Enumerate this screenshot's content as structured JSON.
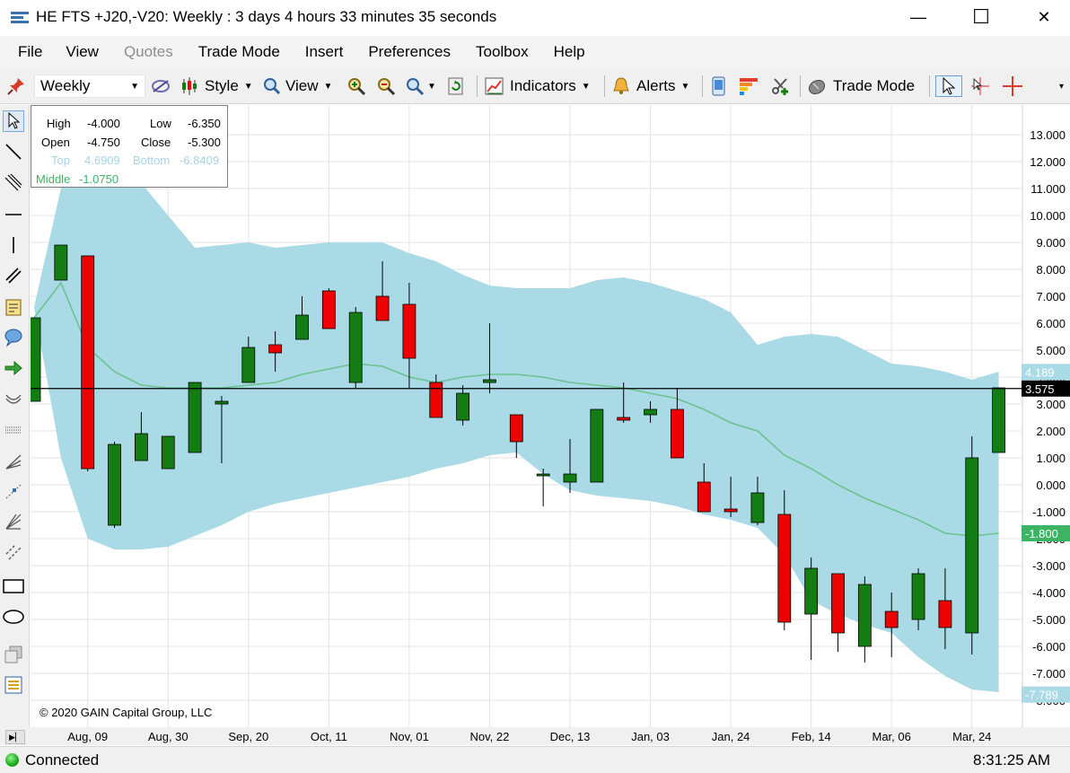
{
  "window": {
    "title": "HE FTS +J20,-V20: Weekly : 3 days 4 hours 33 minutes 35 seconds",
    "minimize_glyph": "—",
    "maximize_glyph": "☐",
    "close_glyph": "✕"
  },
  "menu": {
    "file": "File",
    "view": "View",
    "quotes": "Quotes",
    "trade_mode": "Trade Mode",
    "insert": "Insert",
    "preferences": "Preferences",
    "toolbox": "Toolbox",
    "help": "Help"
  },
  "toolbar": {
    "period": "Weekly",
    "style_label": "Style",
    "view_label": "View",
    "indicators_label": "Indicators",
    "alerts_label": "Alerts",
    "trade_mode_label": "Trade Mode"
  },
  "left_tools": [
    "pointer-tool-icon",
    "trend-line-icon",
    "parallel-channel-icon",
    "horizontal-line-icon",
    "vertical-line-icon",
    "parallel-lines-icon",
    "note-icon",
    "callout-icon",
    "arrow-icon",
    "arc-icon",
    "ruler-icon",
    "fibonacci-fan-icon",
    "gann-tool-icon",
    "speed-lines-icon",
    "regression-channel-icon",
    "rectangle-icon",
    "ellipse-icon",
    "copy-tool-icon",
    "object-list-icon"
  ],
  "info_box": {
    "high_label": "High",
    "high": "-4.000",
    "low_label": "Low",
    "low": "-6.350",
    "open_label": "Open",
    "open": "-4.750",
    "close_label": "Close",
    "close": "-5.300",
    "top_label": "Top",
    "top": "4.6909",
    "bottom_label": "Bottom",
    "bottom": "-6.8409",
    "middle_label": "Middle",
    "middle": "-1.0750"
  },
  "colors": {
    "up_candle": "#137d13",
    "down_candle": "#ec0000",
    "band_fill": "#a9dae5",
    "middle_line": "#6cc28e",
    "price_line": "#000000",
    "band_tag_bg": "#a9dae5",
    "middle_tag_bg": "#3cb464",
    "price_tag_bg": "#000000"
  },
  "chart_data": {
    "type": "candlestick",
    "y_ticks": [
      "13.000",
      "12.000",
      "11.000",
      "10.000",
      "9.000",
      "8.000",
      "7.000",
      "6.000",
      "5.000",
      "4.000",
      "3.000",
      "2.000",
      "1.000",
      "0.000",
      "-1.000",
      "-2.000",
      "-3.000",
      "-4.000",
      "-5.000",
      "-6.000",
      "-7.000",
      "-8.000"
    ],
    "y_tick_values": [
      13,
      12,
      11,
      10,
      9,
      8,
      7,
      6,
      5,
      4,
      3,
      2,
      1,
      0,
      -1,
      -2,
      -3,
      -4,
      -5,
      -6,
      -7,
      -8
    ],
    "ylim": [
      -8.6,
      13.7
    ],
    "x_labels": [
      "Aug, 09",
      "Aug, 30",
      "Sep, 20",
      "Oct, 11",
      "Nov, 01",
      "Nov, 22",
      "Dec, 13",
      "Jan, 03",
      "Jan, 24",
      "Feb, 14",
      "Mar, 06",
      "Mar, 24"
    ],
    "x_label_slots": [
      2,
      5,
      8,
      11,
      14,
      17,
      20,
      23,
      26,
      29,
      32,
      35
    ],
    "grid": "on",
    "candles": [
      {
        "open": 3.1,
        "high": 6.2,
        "low": 3.1,
        "close": 6.2
      },
      {
        "open": 7.6,
        "high": 8.9,
        "low": 7.6,
        "close": 8.9
      },
      {
        "open": 8.5,
        "high": 8.5,
        "low": 0.5,
        "close": 0.6
      },
      {
        "open": -1.5,
        "high": 1.6,
        "low": -1.6,
        "close": 1.5
      },
      {
        "open": 0.9,
        "high": 2.7,
        "low": 0.9,
        "close": 1.9
      },
      {
        "open": 0.6,
        "high": 1.8,
        "low": 0.6,
        "close": 1.8
      },
      {
        "open": 1.2,
        "high": 3.8,
        "low": 1.2,
        "close": 3.8
      },
      {
        "open": 3.0,
        "high": 3.3,
        "low": 0.8,
        "close": 3.1
      },
      {
        "open": 3.8,
        "high": 5.5,
        "low": 3.8,
        "close": 5.1
      },
      {
        "open": 5.2,
        "high": 5.7,
        "low": 4.2,
        "close": 4.9
      },
      {
        "open": 5.4,
        "high": 7.0,
        "low": 5.4,
        "close": 6.3
      },
      {
        "open": 7.2,
        "high": 7.3,
        "low": 5.8,
        "close": 5.8
      },
      {
        "open": 3.8,
        "high": 6.6,
        "low": 3.6,
        "close": 6.4
      },
      {
        "open": 7.0,
        "high": 8.3,
        "low": 6.1,
        "close": 6.1
      },
      {
        "open": 6.7,
        "high": 7.5,
        "low": 3.6,
        "close": 4.7
      },
      {
        "open": 3.8,
        "high": 4.1,
        "low": 2.5,
        "close": 2.5
      },
      {
        "open": 2.4,
        "high": 3.7,
        "low": 2.2,
        "close": 3.4
      },
      {
        "open": 3.8,
        "high": 6.0,
        "low": 3.4,
        "close": 3.9
      },
      {
        "open": 2.6,
        "high": 2.6,
        "low": 1.0,
        "close": 1.6
      },
      {
        "open": 0.4,
        "high": 0.6,
        "low": -0.8,
        "close": 0.4
      },
      {
        "open": 0.1,
        "high": 1.7,
        "low": -0.3,
        "close": 0.4
      },
      {
        "open": 0.1,
        "high": 2.8,
        "low": 0.1,
        "close": 2.8
      },
      {
        "open": 2.5,
        "high": 3.8,
        "low": 2.3,
        "close": 2.4
      },
      {
        "open": 2.6,
        "high": 3.1,
        "low": 2.3,
        "close": 2.8
      },
      {
        "open": 2.8,
        "high": 3.6,
        "low": 1.0,
        "close": 1.0
      },
      {
        "open": 0.1,
        "high": 0.8,
        "low": -1.0,
        "close": -1.0
      },
      {
        "open": -0.9,
        "high": 0.3,
        "low": -1.2,
        "close": -1.0
      },
      {
        "open": -1.4,
        "high": 0.3,
        "low": -1.5,
        "close": -0.3
      },
      {
        "open": -1.1,
        "high": -0.2,
        "low": -5.4,
        "close": -5.1
      },
      {
        "open": -4.8,
        "high": -2.7,
        "low": -6.5,
        "close": -3.1
      },
      {
        "open": -3.3,
        "high": -3.3,
        "low": -6.2,
        "close": -5.5
      },
      {
        "open": -6.0,
        "high": -3.4,
        "low": -6.6,
        "close": -3.7
      },
      {
        "open": -4.7,
        "high": -4.0,
        "low": -6.4,
        "close": -5.3
      },
      {
        "open": -5.0,
        "high": -3.1,
        "low": -5.4,
        "close": -3.3
      },
      {
        "open": -4.3,
        "high": -3.1,
        "low": -6.1,
        "close": -5.3
      },
      {
        "open": -5.5,
        "high": 1.8,
        "low": -6.3,
        "close": 1.0
      },
      {
        "open": 1.2,
        "high": 3.6,
        "low": 1.2,
        "close": 3.6
      }
    ],
    "bollinger_top": [
      6.6,
      11.0,
      12.0,
      12.0,
      11.2,
      10.0,
      8.8,
      8.9,
      9.0,
      8.8,
      8.9,
      9.0,
      9.0,
      9.0,
      8.6,
      8.3,
      7.8,
      7.4,
      7.3,
      7.3,
      7.3,
      7.6,
      7.7,
      7.5,
      7.2,
      6.9,
      6.4,
      5.2,
      5.5,
      5.6,
      5.5,
      5.0,
      4.5,
      4.4,
      4.2,
      3.9,
      4.2
    ],
    "bollinger_middle": [
      6.2,
      7.5,
      5.1,
      4.2,
      3.7,
      3.6,
      3.6,
      3.6,
      3.7,
      3.8,
      4.1,
      4.3,
      4.5,
      4.4,
      4.0,
      3.8,
      4.0,
      4.1,
      4.1,
      4.0,
      3.8,
      3.7,
      3.6,
      3.4,
      3.2,
      2.8,
      2.3,
      2.0,
      1.1,
      0.6,
      0.0,
      -0.5,
      -0.9,
      -1.3,
      -1.8,
      -1.9,
      -1.8
    ],
    "bollinger_bottom": [
      6.6,
      1.0,
      -2.0,
      -2.4,
      -2.4,
      -2.3,
      -1.9,
      -1.5,
      -1.0,
      -0.7,
      -0.5,
      -0.3,
      -0.1,
      0.1,
      0.3,
      0.6,
      0.8,
      1.1,
      1.2,
      0.4,
      -0.2,
      -0.4,
      -0.5,
      -0.6,
      -0.8,
      -1.1,
      -1.3,
      -1.6,
      -2.6,
      -4.3,
      -4.8,
      -5.2,
      -5.5,
      -6.4,
      -7.1,
      -7.6,
      -7.7
    ],
    "current_price": 3.575,
    "current_price_label": "3.575",
    "band_top_label": "4.189",
    "band_top_value": 4.189,
    "band_middle_label": "-1.800",
    "band_middle_value": -1.8,
    "band_bottom_label": "-7.789",
    "band_bottom_value": -7.789
  },
  "copyright": "© 2020 GAIN Capital Group, LLC",
  "status": {
    "connection": "Connected",
    "time": "8:31:25 AM"
  },
  "bottom_bar": {
    "expand_glyph": "▶▏"
  }
}
